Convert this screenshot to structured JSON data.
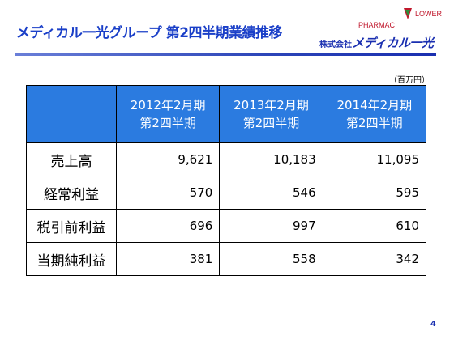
{
  "header": {
    "title": "メディカル一光グループ 第2四半期業績推移",
    "company_prefix": "株式会社",
    "company_name": "メディカル一光",
    "logo_text_left": "PHARMAC",
    "logo_text_right": "LOWER"
  },
  "unit": "（百万円）",
  "table": {
    "columns": [
      {
        "line1": "2012年2月期",
        "line2": "第2四半期"
      },
      {
        "line1": "2013年2月期",
        "line2": "第2四半期"
      },
      {
        "line1": "2014年2月期",
        "line2": "第2四半期"
      }
    ],
    "rows": [
      {
        "label": "売上高",
        "values": [
          "9,621",
          "10,183",
          "11,095"
        ]
      },
      {
        "label": "経常利益",
        "values": [
          "570",
          "546",
          "595"
        ]
      },
      {
        "label": "税引前利益",
        "values": [
          "696",
          "997",
          "610"
        ]
      },
      {
        "label": "当期純利益",
        "values": [
          "381",
          "558",
          "342"
        ]
      }
    ]
  },
  "page_number": "4",
  "colors": {
    "accent": "#1a3fc8",
    "header_fill": "#2b7be0",
    "logo_red": "#c0172b",
    "logo_green": "#2e8b3a"
  }
}
